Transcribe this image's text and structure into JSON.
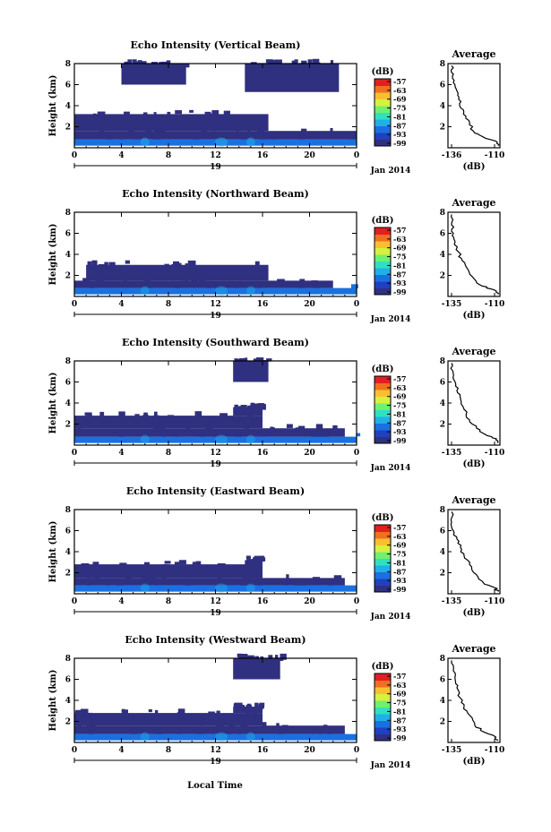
{
  "figure": {
    "xlabel": "Local Time",
    "day_label": "19",
    "month_label": "Jan 2014",
    "avg_title": "Average",
    "avg_xlabel": "(dB)",
    "cb_title": "(dB)"
  },
  "colorbar": {
    "ticks": [
      "-57",
      "-63",
      "-69",
      "-75",
      "-81",
      "-87",
      "-93",
      "-99"
    ],
    "colors": [
      "#303080",
      "#2040c0",
      "#1a70e0",
      "#20b0e8",
      "#30e0c0",
      "#70f070",
      "#d8f040",
      "#f8c030",
      "#f07020",
      "#e02020"
    ]
  },
  "chart_data": [
    {
      "type": "heatmap",
      "title": "Echo Intensity (Vertical Beam)",
      "xlabel": "Local Time",
      "ylabel": "Height (km)",
      "xticks": [
        "0",
        "4",
        "8",
        "12",
        "16",
        "20",
        "0"
      ],
      "yticks": [
        "8",
        "6",
        "4",
        "2"
      ],
      "xlim": [
        0,
        24
      ],
      "ylim": [
        0,
        8
      ],
      "zlim": [
        -99,
        -57
      ],
      "layers": [
        {
          "t": [
            0,
            24
          ],
          "h": [
            0.2,
            0.8
          ],
          "value": -88
        },
        {
          "t": [
            0,
            24
          ],
          "h": [
            0.8,
            1.6
          ],
          "value": -96
        },
        {
          "t": [
            0,
            16.5
          ],
          "h": [
            1.6,
            3.2
          ],
          "value": -98
        },
        {
          "t": [
            4,
            9.5
          ],
          "h": [
            6.0,
            8.0
          ],
          "value": -98
        },
        {
          "t": [
            14.5,
            22.5
          ],
          "h": [
            5.3,
            8.0
          ],
          "value": -98
        }
      ],
      "average": {
        "title": "Average",
        "xlabel": "(dB)",
        "xlim": [
          -136,
          -107
        ],
        "ylim": [
          0,
          8
        ],
        "xticks": [
          "-136",
          "-110"
        ],
        "yticks": [
          "8",
          "6",
          "4",
          "2"
        ],
        "profile": [
          [
            -108,
            0.2
          ],
          [
            -109,
            0.6
          ],
          [
            -116,
            1.0
          ],
          [
            -121,
            1.4
          ],
          [
            -124,
            2.2
          ],
          [
            -126,
            3.0
          ],
          [
            -129,
            3.8
          ],
          [
            -130,
            4.6
          ],
          [
            -131,
            5.4
          ],
          [
            -133,
            6.2
          ],
          [
            -133,
            7.0
          ],
          [
            -134,
            7.8
          ]
        ]
      }
    },
    {
      "type": "heatmap",
      "title": "Echo Intensity (Northward Beam)",
      "xlabel": "Local Time",
      "ylabel": "Height (km)",
      "xticks": [
        "0",
        "4",
        "8",
        "12",
        "16",
        "20",
        "0"
      ],
      "yticks": [
        "8",
        "6",
        "4",
        "2"
      ],
      "xlim": [
        0,
        24
      ],
      "ylim": [
        0,
        8
      ],
      "zlim": [
        -99,
        -57
      ],
      "layers": [
        {
          "t": [
            0,
            24
          ],
          "h": [
            0.2,
            0.8
          ],
          "value": -90
        },
        {
          "t": [
            0,
            22
          ],
          "h": [
            0.8,
            1.5
          ],
          "value": -97
        },
        {
          "t": [
            1,
            16.5
          ],
          "h": [
            1.5,
            3.0
          ],
          "value": -98
        }
      ],
      "average": {
        "title": "Average",
        "xlabel": "(dB)",
        "xlim": [
          -136,
          -107
        ],
        "ylim": [
          0,
          8
        ],
        "xticks": [
          "-135",
          "-110"
        ],
        "yticks": [
          "8",
          "6",
          "4",
          "2"
        ],
        "profile": [
          [
            -108,
            0.2
          ],
          [
            -110,
            0.6
          ],
          [
            -117,
            1.0
          ],
          [
            -121,
            1.6
          ],
          [
            -125,
            2.6
          ],
          [
            -128,
            3.4
          ],
          [
            -130,
            4.2
          ],
          [
            -132,
            5.2
          ],
          [
            -133,
            6.0
          ],
          [
            -134,
            6.8
          ],
          [
            -134,
            7.8
          ]
        ]
      }
    },
    {
      "type": "heatmap",
      "title": "Echo Intensity (Southward Beam)",
      "xlabel": "Local Time",
      "ylabel": "Height (km)",
      "xticks": [
        "0",
        "4",
        "8",
        "12",
        "16",
        "20",
        "0"
      ],
      "yticks": [
        "8",
        "6",
        "4",
        "2"
      ],
      "xlim": [
        0,
        24
      ],
      "ylim": [
        0,
        8
      ],
      "zlim": [
        -99,
        -57
      ],
      "layers": [
        {
          "t": [
            0,
            24
          ],
          "h": [
            0.2,
            0.8
          ],
          "value": -88
        },
        {
          "t": [
            0,
            23
          ],
          "h": [
            0.8,
            1.6
          ],
          "value": -97
        },
        {
          "t": [
            0,
            16
          ],
          "h": [
            1.6,
            2.8
          ],
          "value": -98
        },
        {
          "t": [
            13.5,
            16
          ],
          "h": [
            2.8,
            3.6
          ],
          "value": -98
        },
        {
          "t": [
            13.5,
            16.5
          ],
          "h": [
            6.0,
            8.0
          ],
          "value": -98
        }
      ],
      "average": {
        "title": "Average",
        "xlabel": "(dB)",
        "xlim": [
          -136,
          -107
        ],
        "ylim": [
          0,
          8
        ],
        "xticks": [
          "-135",
          "-110"
        ],
        "yticks": [
          "8",
          "6",
          "4",
          "2"
        ],
        "profile": [
          [
            -108,
            0.2
          ],
          [
            -109,
            0.6
          ],
          [
            -115,
            1.0
          ],
          [
            -120,
            1.6
          ],
          [
            -124,
            2.4
          ],
          [
            -127,
            3.4
          ],
          [
            -129,
            4.4
          ],
          [
            -131,
            5.2
          ],
          [
            -132,
            6.0
          ],
          [
            -133,
            6.8
          ],
          [
            -134,
            7.8
          ]
        ]
      }
    },
    {
      "type": "heatmap",
      "title": "Echo Intensity (Eastward Beam)",
      "xlabel": "Local Time",
      "ylabel": "Height (km)",
      "xticks": [
        "0",
        "4",
        "8",
        "12",
        "16",
        "20",
        "0"
      ],
      "yticks": [
        "8",
        "6",
        "4",
        "2"
      ],
      "xlim": [
        0,
        24
      ],
      "ylim": [
        0,
        8
      ],
      "zlim": [
        -99,
        -57
      ],
      "layers": [
        {
          "t": [
            0,
            24
          ],
          "h": [
            0.2,
            0.8
          ],
          "value": -89
        },
        {
          "t": [
            0,
            23
          ],
          "h": [
            0.8,
            1.5
          ],
          "value": -97
        },
        {
          "t": [
            0,
            16
          ],
          "h": [
            1.5,
            2.8
          ],
          "value": -98
        },
        {
          "t": [
            14.5,
            16
          ],
          "h": [
            1.5,
            3.2
          ],
          "value": -98
        }
      ],
      "average": {
        "title": "Average",
        "xlabel": "(dB)",
        "xlim": [
          -136,
          -107
        ],
        "ylim": [
          0,
          8
        ],
        "xticks": [
          "-135",
          "-110"
        ],
        "yticks": [
          "8",
          "6",
          "4",
          "2"
        ],
        "profile": [
          [
            -108,
            0.2
          ],
          [
            -110,
            0.6
          ],
          [
            -116,
            1.0
          ],
          [
            -120,
            1.8
          ],
          [
            -124,
            2.8
          ],
          [
            -127,
            3.6
          ],
          [
            -129,
            4.4
          ],
          [
            -131,
            5.2
          ],
          [
            -133,
            6.0
          ],
          [
            -134,
            6.8
          ],
          [
            -134,
            7.8
          ]
        ]
      }
    },
    {
      "type": "heatmap",
      "title": "Echo Intensity (Westward Beam)",
      "xlabel": "Local Time",
      "ylabel": "Height (km)",
      "xticks": [
        "0",
        "4",
        "8",
        "12",
        "16",
        "20",
        "0"
      ],
      "yticks": [
        "8",
        "6",
        "4",
        "2"
      ],
      "xlim": [
        0,
        24
      ],
      "ylim": [
        0,
        8
      ],
      "zlim": [
        -99,
        -57
      ],
      "layers": [
        {
          "t": [
            0,
            24
          ],
          "h": [
            0.2,
            0.8
          ],
          "value": -88
        },
        {
          "t": [
            0,
            23
          ],
          "h": [
            0.8,
            1.6
          ],
          "value": -97
        },
        {
          "t": [
            0,
            16
          ],
          "h": [
            1.6,
            2.8
          ],
          "value": -98
        },
        {
          "t": [
            13.5,
            16
          ],
          "h": [
            2.8,
            3.4
          ],
          "value": -98
        },
        {
          "t": [
            13.5,
            17.5
          ],
          "h": [
            6.0,
            8.0
          ],
          "value": -98
        }
      ],
      "average": {
        "title": "Average",
        "xlabel": "(dB)",
        "xlim": [
          -136,
          -107
        ],
        "ylim": [
          0,
          8
        ],
        "xticks": [
          "-135",
          "-110"
        ],
        "yticks": [
          "8",
          "6",
          "4",
          "2"
        ],
        "profile": [
          [
            -108,
            0.2
          ],
          [
            -110,
            0.6
          ],
          [
            -116,
            1.0
          ],
          [
            -121,
            1.6
          ],
          [
            -124,
            2.6
          ],
          [
            -127,
            3.4
          ],
          [
            -129,
            4.2
          ],
          [
            -131,
            5.2
          ],
          [
            -132,
            6.0
          ],
          [
            -133,
            6.8
          ],
          [
            -134,
            7.8
          ]
        ]
      }
    }
  ]
}
